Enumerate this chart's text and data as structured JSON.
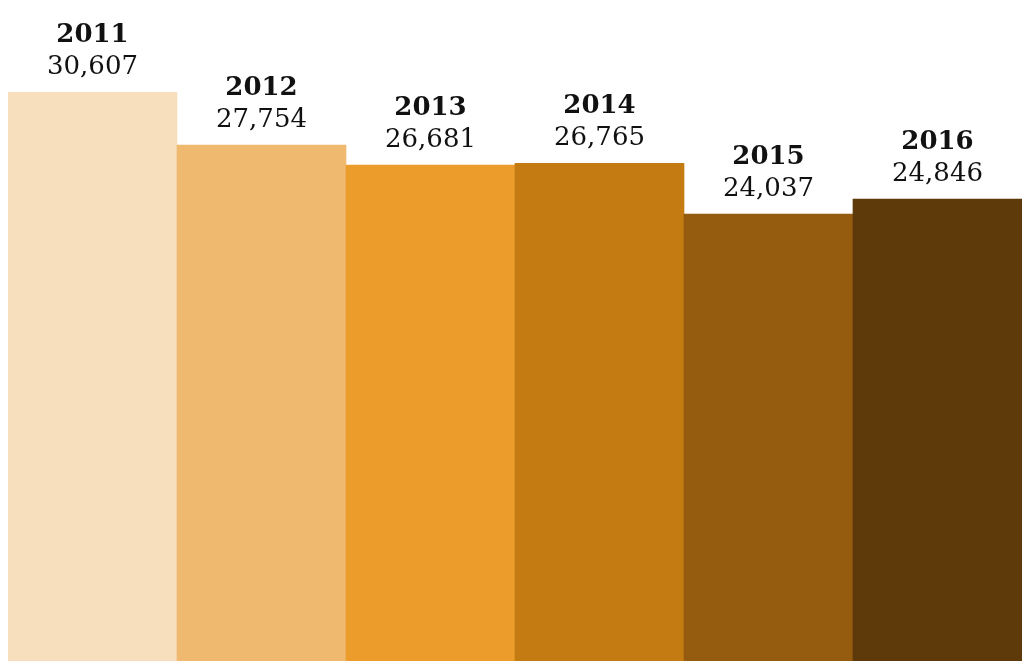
{
  "chart_data": {
    "type": "bar",
    "categories": [
      "2011",
      "2012",
      "2013",
      "2014",
      "2015",
      "2016"
    ],
    "values": [
      30607,
      27754,
      26681,
      26765,
      24037,
      24846
    ],
    "value_labels": [
      "30,607",
      "27,754",
      "26,681",
      "26,765",
      "24,037",
      "24,846"
    ],
    "colors": [
      "#f7dfbd",
      "#efba70",
      "#eb9c2a",
      "#c47b12",
      "#955c0f",
      "#5e3a0b"
    ],
    "legend": false
  }
}
